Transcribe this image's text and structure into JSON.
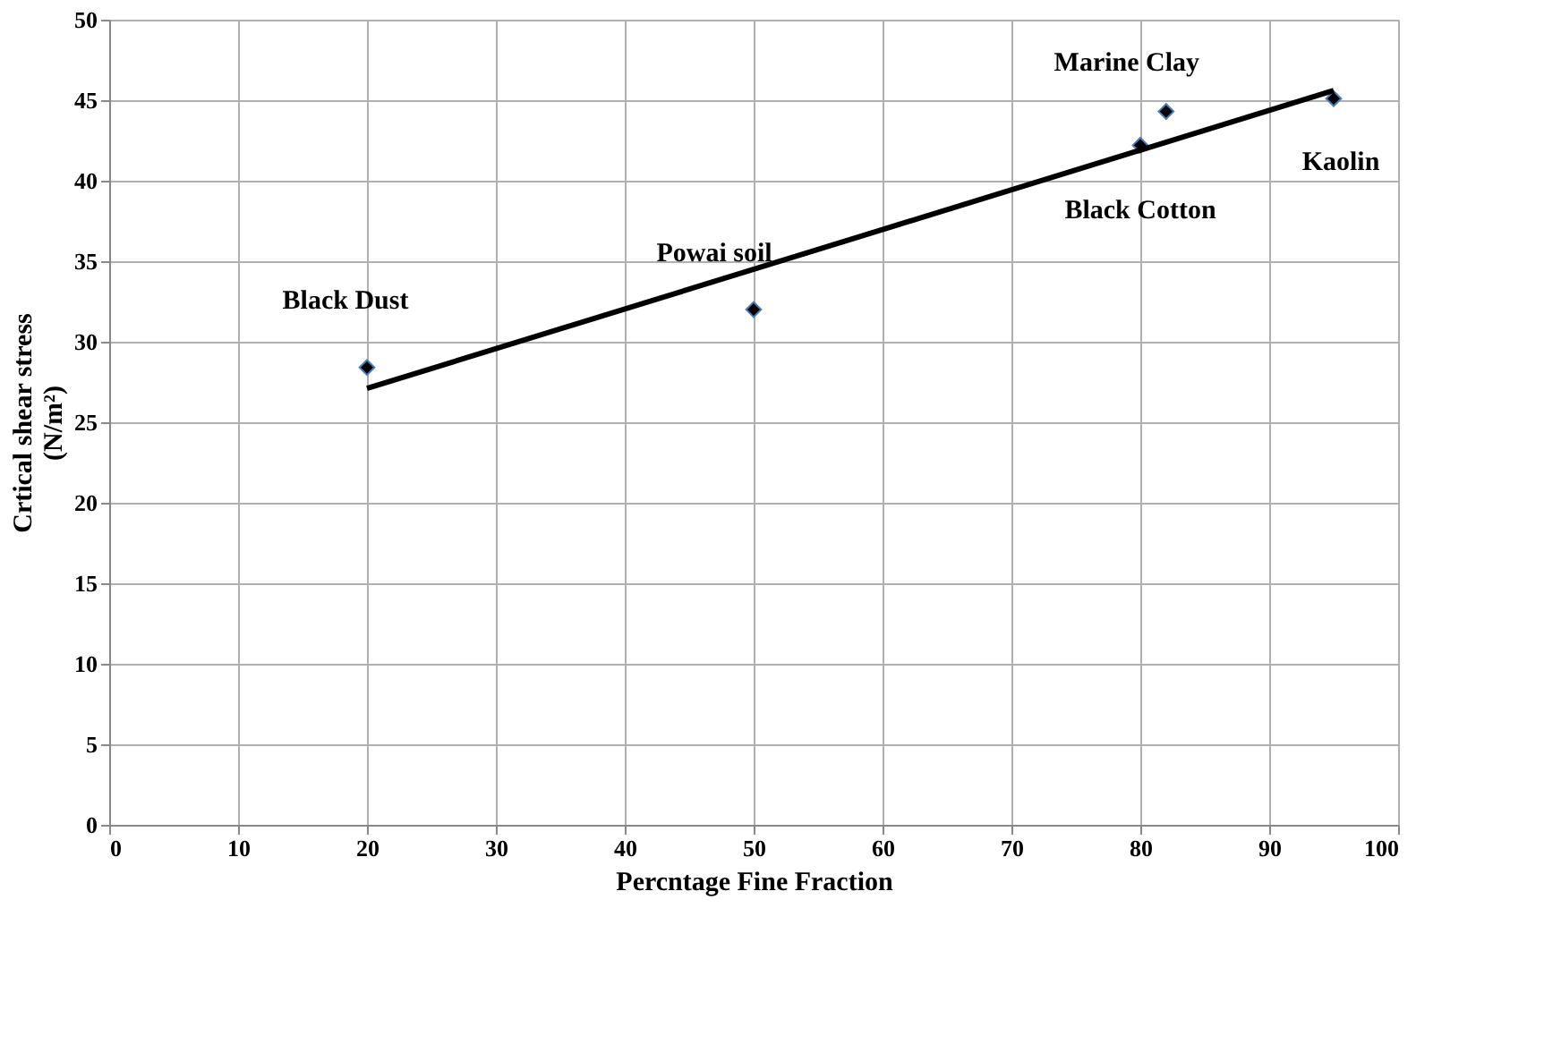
{
  "chart_data": {
    "type": "scatter",
    "xlabel": "Percntage Fine Fraction",
    "ylabel": "Crtical shear stress\n(N/m²)",
    "series": [
      {
        "color": "#000000",
        "x": [
          20,
          50,
          80,
          82,
          95
        ],
        "values": [
          28.4,
          32.0,
          42.2,
          44.3,
          45.1
        ]
      },
      {
        "type": "line",
        "color": "#000000",
        "marker": "none",
        "x": [
          20,
          95
        ],
        "values": [
          27.1,
          45.6
        ]
      }
    ],
    "annotations": [
      {
        "text": "Black Dust",
        "x": 20,
        "y": 28.4
      },
      {
        "text": "Powai soil",
        "x": 50,
        "y": 32.0
      },
      {
        "text": "Marine Clay",
        "x": 82,
        "y": 44.3
      },
      {
        "text": "Black Cotton",
        "x": 80,
        "y": 42.2
      },
      {
        "text": "Kaolin",
        "x": 95,
        "y": 45.1
      }
    ],
    "xlim": [
      0,
      100
    ],
    "xticks": [
      0,
      10,
      20,
      30,
      40,
      50,
      60,
      70,
      80,
      90,
      100
    ],
    "ylim": [
      0,
      50
    ],
    "yticks": [
      0,
      5,
      10,
      15,
      20,
      25,
      30,
      35,
      40,
      45,
      50
    ],
    "grid": true,
    "marker": "diamond",
    "line_style": "solid"
  }
}
